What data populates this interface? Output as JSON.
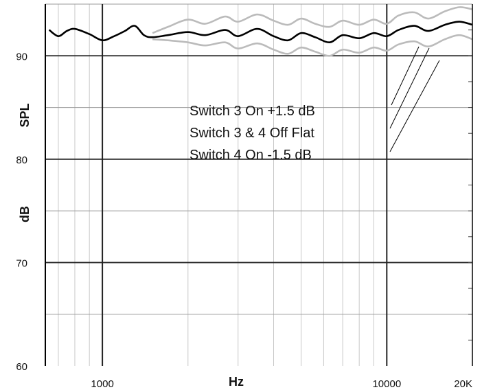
{
  "chart_data": {
    "type": "line",
    "xlabel": "Hz",
    "ylabel_top": "SPL",
    "ylabel_bottom": "dB",
    "x_scale": "log",
    "xlim": [
      630,
      20000
    ],
    "ylim": [
      60,
      95
    ],
    "x_ticks": [
      {
        "value": 1000,
        "label": "1000"
      },
      {
        "value": 10000,
        "label": "10000"
      },
      {
        "value": 20000,
        "label": "20K"
      }
    ],
    "y_ticks": [
      {
        "value": 60,
        "label": "60"
      },
      {
        "value": 70,
        "label": "70"
      },
      {
        "value": 80,
        "label": "80"
      },
      {
        "value": 90,
        "label": "90"
      }
    ],
    "grid": true,
    "annotations": [
      "Switch 3 On +1.5 dB",
      "Switch 3 & 4 Off Flat",
      "Switch 4 On -1.5 dB"
    ],
    "series": [
      {
        "color": "#bbbbbb",
        "x": [
          1500,
          1700,
          2000,
          2300,
          2700,
          3000,
          3500,
          4000,
          4500,
          5000,
          5600,
          6300,
          7000,
          8000,
          9000,
          10000,
          11000,
          12500,
          14000,
          16000,
          18000,
          20000
        ],
        "y": [
          92.2,
          92.8,
          93.5,
          93.1,
          93.8,
          93.3,
          94.0,
          93.4,
          93.0,
          93.6,
          93.1,
          92.8,
          93.4,
          93.0,
          93.5,
          93.1,
          93.9,
          94.2,
          93.6,
          94.3,
          94.7,
          94.5
        ]
      },
      {
        "color": "#000000",
        "x": [
          650,
          700,
          750,
          800,
          900,
          1000,
          1100,
          1200,
          1300,
          1400,
          1500,
          1700,
          2000,
          2300,
          2700,
          3000,
          3500,
          4000,
          4500,
          5000,
          5600,
          6300,
          7000,
          8000,
          9000,
          10000,
          11000,
          12500,
          14000,
          16000,
          18000,
          20000
        ],
        "y": [
          92.5,
          91.9,
          92.4,
          92.6,
          92.1,
          91.5,
          91.9,
          92.4,
          92.9,
          92.0,
          91.8,
          92.0,
          92.3,
          92.0,
          92.5,
          91.9,
          92.6,
          91.9,
          91.5,
          92.2,
          91.8,
          91.3,
          92.0,
          91.7,
          92.2,
          91.9,
          92.5,
          92.9,
          92.4,
          93.0,
          93.3,
          93.0
        ]
      },
      {
        "color": "#bbbbbb",
        "x": [
          1500,
          1700,
          2000,
          2300,
          2700,
          3000,
          3500,
          4000,
          4500,
          5000,
          5600,
          6300,
          7000,
          8000,
          9000,
          10000,
          11000,
          12500,
          14000,
          16000,
          18000,
          20000
        ],
        "y": [
          91.6,
          91.5,
          91.3,
          91.0,
          91.3,
          90.7,
          91.2,
          90.6,
          90.2,
          90.8,
          90.4,
          90.0,
          90.6,
          90.3,
          90.8,
          90.5,
          91.1,
          91.4,
          90.9,
          91.6,
          92.0,
          91.6
        ]
      }
    ]
  }
}
